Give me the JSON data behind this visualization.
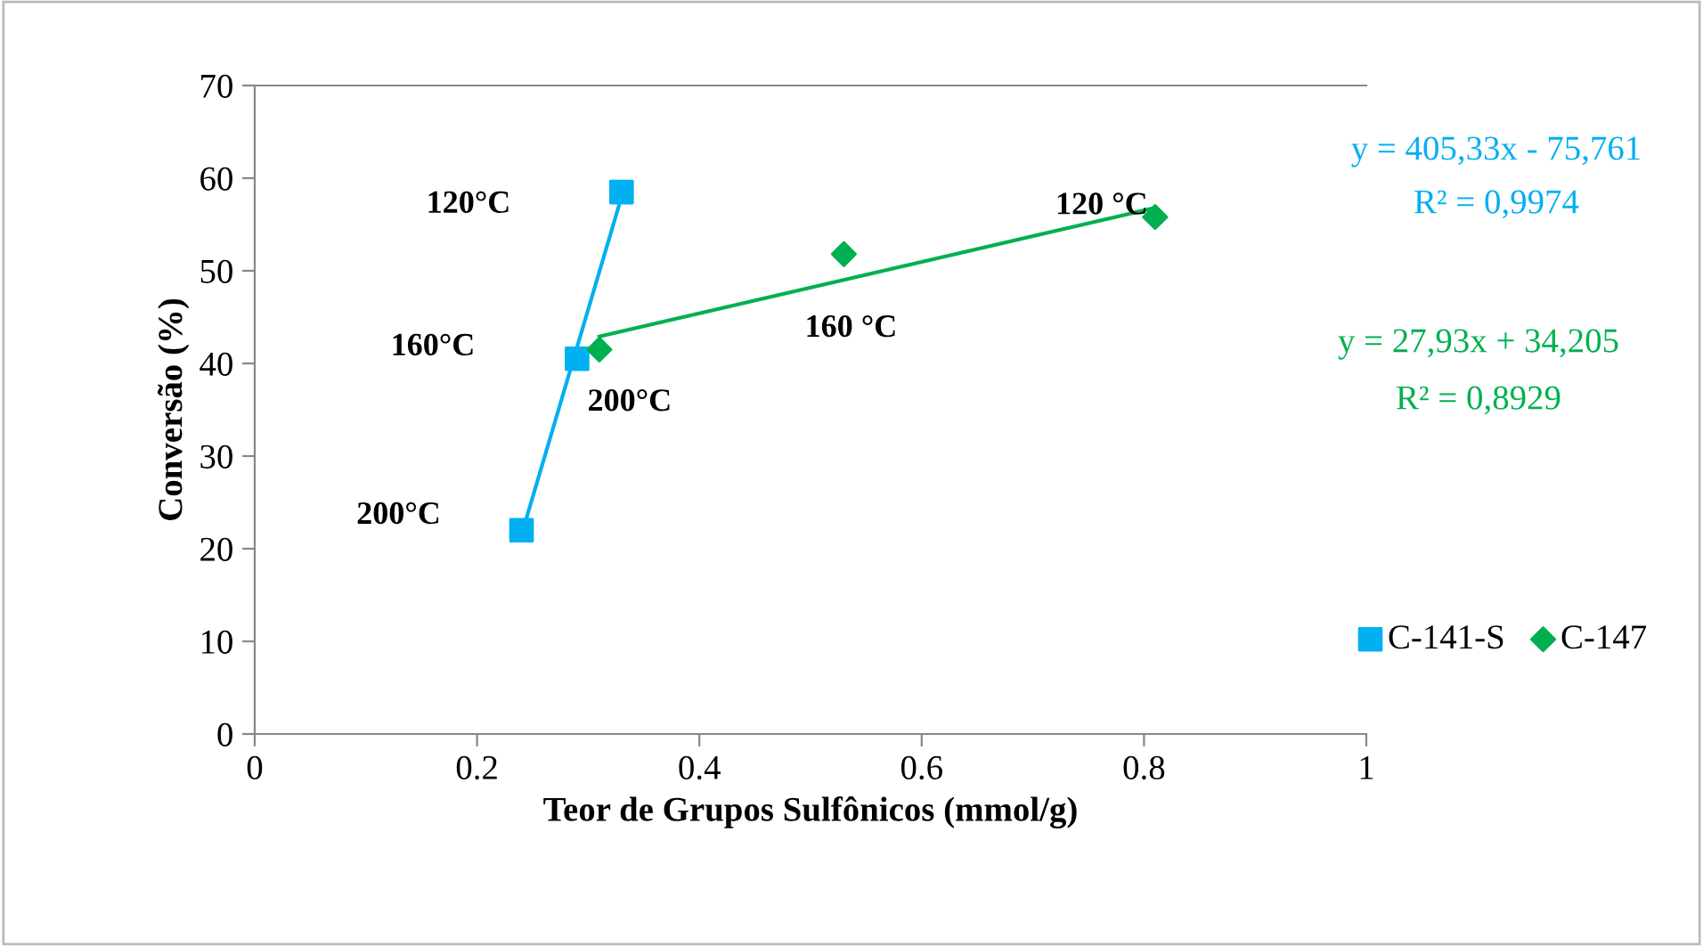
{
  "chart_data": {
    "type": "scatter",
    "xlabel": "Teor de Grupos Sulfônicos (mmol/g)",
    "ylabel": "Conversão (%)",
    "xlim": [
      0,
      1
    ],
    "ylim": [
      0,
      70
    ],
    "xticks": [
      0,
      {
        "value": 0.2,
        "label": "0.2"
      },
      {
        "value": 0.4,
        "label": "0.4"
      },
      {
        "value": 0.6,
        "label": "0.6"
      },
      {
        "value": 0.8,
        "label": "0.8"
      },
      1
    ],
    "yticks": [
      0,
      10,
      20,
      30,
      40,
      50,
      60,
      70
    ],
    "grid": false,
    "legend": "right",
    "series": [
      {
        "name": "C-141-S",
        "color": "#00b0f0",
        "marker": "square",
        "x": [
          0.24,
          0.29,
          0.33
        ],
        "values": [
          22,
          40.5,
          58.5
        ]
      },
      {
        "name": "C-147",
        "color": "#00b050",
        "marker": "diamond",
        "x": [
          0.31,
          0.53,
          0.81
        ],
        "values": [
          41.5,
          51.8,
          55.8
        ]
      },
      {
        "type": "line",
        "color": "#00b0f0",
        "marker": "none",
        "x": [
          0.24,
          0.33
        ],
        "values": [
          21.5,
          58.0
        ]
      },
      {
        "type": "line",
        "color": "#00b050",
        "marker": "none",
        "x": [
          0.31,
          0.81
        ],
        "values": [
          42.9,
          56.8
        ]
      }
    ],
    "annotations": [
      {
        "text": "200°C",
        "x": 0.24,
        "y": 22
      },
      {
        "text": "200°C",
        "x": 0.31,
        "y": 41.5
      },
      {
        "text": "160 °C",
        "x": 0.53,
        "y": 51.8
      },
      {
        "text": "120 °C",
        "x": 0.81,
        "y": 55.8
      },
      "120°C",
      "160°C",
      "y = 405,33x - 75,761",
      "R² = 0,9974",
      "y = 27,93x + 34,205",
      "R² = 0,8929"
    ]
  }
}
